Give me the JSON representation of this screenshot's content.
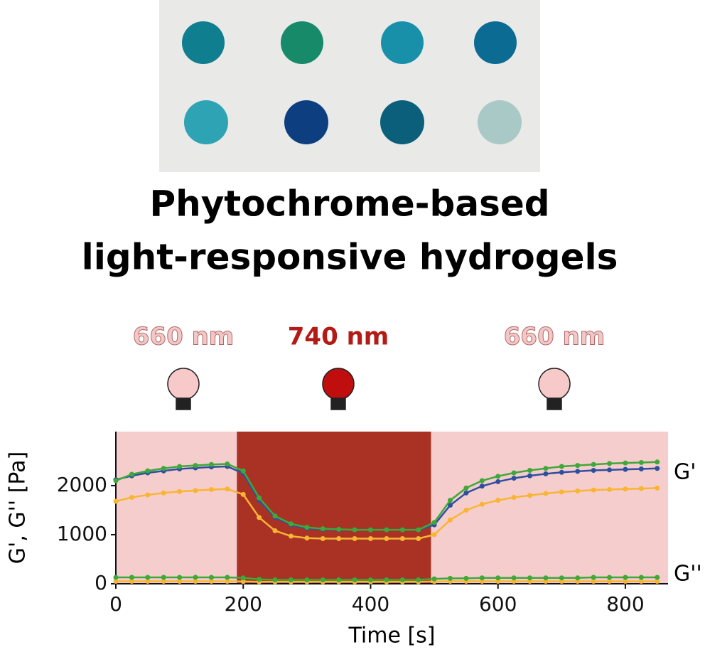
{
  "header": {
    "title_lines": [
      "Phytochrome-based",
      "light-responsive hydrogels"
    ]
  },
  "chart_data": {
    "type": "line",
    "xlabel": "Time [s]",
    "ylabel": "G', G'' [Pa]",
    "xlim": [
      0,
      867
    ],
    "xticks": [
      0,
      200,
      400,
      600,
      800
    ],
    "ylim": [
      0,
      3100
    ],
    "yticks": [
      0,
      1000,
      2000
    ],
    "annotations": [
      {
        "text": "660 nm",
        "color": "#f4c7c7"
      },
      {
        "text": "740 nm",
        "color": "#b31b16"
      },
      {
        "text": "660 nm",
        "color": "#f4c7c7"
      }
    ],
    "side_labels": [
      "G'",
      "G''"
    ],
    "regions": [
      {
        "xlim": [
          0,
          190
        ],
        "color": "#f5cdcd"
      },
      {
        "xlim": [
          190,
          495
        ],
        "color": "#a93224"
      },
      {
        "xlim": [
          495,
          867
        ],
        "color": "#f5cdcd"
      }
    ],
    "x": [
      0,
      25,
      50,
      75,
      100,
      125,
      150,
      175,
      200,
      225,
      250,
      275,
      300,
      325,
      350,
      375,
      400,
      425,
      450,
      475,
      500,
      525,
      550,
      575,
      600,
      625,
      650,
      675,
      700,
      725,
      750,
      775,
      800,
      825,
      850
    ],
    "series": [
      {
        "color": "#f8b534",
        "values": [
          1680,
          1760,
          1810,
          1850,
          1880,
          1900,
          1920,
          1930,
          1820,
          1350,
          1080,
          970,
          930,
          920,
          920,
          920,
          920,
          920,
          920,
          920,
          1000,
          1300,
          1500,
          1620,
          1700,
          1760,
          1800,
          1840,
          1870,
          1890,
          1910,
          1920,
          1930,
          1940,
          1950
        ]
      },
      {
        "color": "#2e4fa0",
        "values": [
          2120,
          2200,
          2260,
          2300,
          2340,
          2360,
          2380,
          2390,
          2250,
          1700,
          1350,
          1200,
          1130,
          1110,
          1100,
          1100,
          1100,
          1100,
          1100,
          1100,
          1200,
          1600,
          1850,
          1990,
          2080,
          2150,
          2200,
          2240,
          2270,
          2290,
          2310,
          2320,
          2330,
          2340,
          2350
        ]
      },
      {
        "color": "#3ea83a",
        "values": [
          2100,
          2230,
          2300,
          2350,
          2390,
          2410,
          2430,
          2440,
          2300,
          1750,
          1380,
          1220,
          1150,
          1120,
          1110,
          1100,
          1100,
          1100,
          1100,
          1100,
          1250,
          1700,
          1950,
          2100,
          2190,
          2260,
          2310,
          2350,
          2390,
          2410,
          2430,
          2450,
          2460,
          2470,
          2480
        ]
      },
      {
        "color": "#f8b534",
        "values": [
          50,
          50,
          50,
          50,
          50,
          50,
          50,
          50,
          45,
          40,
          40,
          40,
          40,
          40,
          40,
          40,
          40,
          40,
          40,
          40,
          45,
          50,
          50,
          50,
          50,
          50,
          50,
          50,
          50,
          50,
          50,
          50,
          50,
          50,
          50
        ]
      },
      {
        "color": "#3ea83a",
        "values": [
          130,
          130,
          130,
          130,
          130,
          130,
          130,
          130,
          120,
          90,
          80,
          80,
          80,
          80,
          80,
          80,
          80,
          80,
          80,
          80,
          100,
          110,
          110,
          120,
          120,
          120,
          120,
          120,
          120,
          120,
          130,
          130,
          130,
          130,
          130
        ]
      }
    ]
  }
}
